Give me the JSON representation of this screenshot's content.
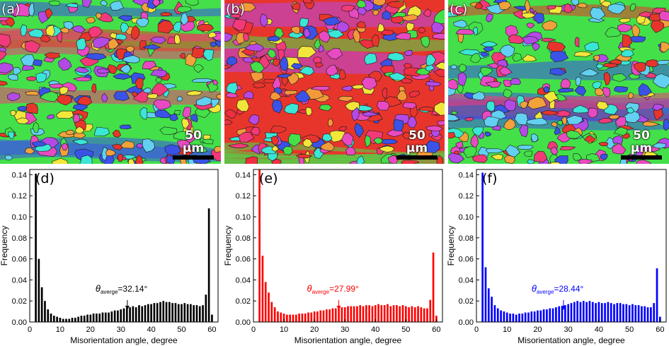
{
  "micrographs": [
    {
      "label": "(a)",
      "scale_text": "50 μm",
      "palette": [
        "#44e04a",
        "#e8352c",
        "#f23a7a",
        "#3a52e6",
        "#b44ae6",
        "#f2e63a",
        "#3ae6d6",
        "#f2a23a",
        "#e84ac2",
        "#62d0f0"
      ]
    },
    {
      "label": "(b)",
      "scale_text": "50 μm",
      "palette": [
        "#e8352c",
        "#44e04a",
        "#f23a7a",
        "#b44ae6",
        "#3a52e6",
        "#f2e63a",
        "#f29a3a",
        "#3ae6d6",
        "#e84ac2",
        "#ee3040"
      ]
    },
    {
      "label": "(c)",
      "scale_text": "50 μm",
      "palette": [
        "#44e04a",
        "#e8352c",
        "#f23a7a",
        "#3a52e6",
        "#b44ae6",
        "#e84ac2",
        "#f2e63a",
        "#3ae6d6",
        "#f2a23a",
        "#62d0f0"
      ]
    }
  ],
  "chart_data": [
    {
      "type": "bar",
      "label": "(d)",
      "color": "#000000",
      "xlabel": "Misorientation angle, degree",
      "ylabel": "Frequency",
      "xlim": [
        0,
        62
      ],
      "ylim": [
        0,
        0.145
      ],
      "xticks": [
        0,
        10,
        20,
        30,
        40,
        50,
        60
      ],
      "yticks": [
        0.0,
        0.02,
        0.04,
        0.06,
        0.08,
        0.1,
        0.12,
        0.14
      ],
      "x": [
        2,
        3,
        4,
        5,
        6,
        7,
        8,
        9,
        10,
        11,
        12,
        13,
        14,
        15,
        16,
        17,
        18,
        19,
        20,
        21,
        22,
        23,
        24,
        25,
        26,
        27,
        28,
        29,
        30,
        31,
        32,
        33,
        34,
        35,
        36,
        37,
        38,
        39,
        40,
        41,
        42,
        43,
        44,
        45,
        46,
        47,
        48,
        49,
        50,
        51,
        52,
        53,
        54,
        55,
        56,
        57,
        58,
        59,
        60,
        61
      ],
      "values": [
        0.141,
        0.06,
        0.033,
        0.02,
        0.012,
        0.008,
        0.006,
        0.005,
        0.004,
        0.003,
        0.003,
        0.003,
        0.004,
        0.004,
        0.005,
        0.006,
        0.006,
        0.007,
        0.007,
        0.008,
        0.008,
        0.008,
        0.009,
        0.009,
        0.009,
        0.01,
        0.011,
        0.011,
        0.012,
        0.013,
        0.013,
        0.014,
        0.015,
        0.014,
        0.016,
        0.015,
        0.016,
        0.017,
        0.017,
        0.018,
        0.018,
        0.019,
        0.02,
        0.019,
        0.019,
        0.018,
        0.018,
        0.017,
        0.017,
        0.018,
        0.017,
        0.017,
        0.016,
        0.016,
        0.015,
        0.016,
        0.026,
        0.108,
        0.007,
        0.0
      ],
      "annotation": {
        "symbol": "θ",
        "subscript": "averge",
        "value_text": "=32.14°",
        "x": 32.14
      }
    },
    {
      "type": "bar",
      "label": "(e)",
      "color": "#ff0000",
      "xlabel": "Misorientation angle, degree",
      "ylabel": "Frequency",
      "xlim": [
        0,
        62
      ],
      "ylim": [
        0,
        0.145
      ],
      "xticks": [
        0,
        10,
        20,
        30,
        40,
        50,
        60
      ],
      "yticks": [
        0.0,
        0.02,
        0.04,
        0.06,
        0.08,
        0.1,
        0.12,
        0.14
      ],
      "x": [
        2,
        3,
        4,
        5,
        6,
        7,
        8,
        9,
        10,
        11,
        12,
        13,
        14,
        15,
        16,
        17,
        18,
        19,
        20,
        21,
        22,
        23,
        24,
        25,
        26,
        27,
        28,
        29,
        30,
        31,
        32,
        33,
        34,
        35,
        36,
        37,
        38,
        39,
        40,
        41,
        42,
        43,
        44,
        45,
        46,
        47,
        48,
        49,
        50,
        51,
        52,
        53,
        54,
        55,
        56,
        57,
        58,
        59,
        60,
        61
      ],
      "values": [
        0.145,
        0.063,
        0.038,
        0.028,
        0.019,
        0.014,
        0.01,
        0.009,
        0.008,
        0.007,
        0.007,
        0.007,
        0.007,
        0.008,
        0.008,
        0.008,
        0.009,
        0.009,
        0.01,
        0.01,
        0.011,
        0.011,
        0.012,
        0.012,
        0.013,
        0.013,
        0.014,
        0.014,
        0.014,
        0.015,
        0.015,
        0.015,
        0.015,
        0.016,
        0.015,
        0.016,
        0.016,
        0.015,
        0.016,
        0.017,
        0.016,
        0.016,
        0.017,
        0.015,
        0.016,
        0.016,
        0.015,
        0.016,
        0.015,
        0.014,
        0.015,
        0.014,
        0.015,
        0.014,
        0.013,
        0.013,
        0.021,
        0.066,
        0.006,
        0.0
      ],
      "annotation": {
        "symbol": "θ",
        "subscript": "averge",
        "value_text": "=27.99°",
        "x": 27.99
      }
    },
    {
      "type": "bar",
      "label": "(f)",
      "color": "#0000ff",
      "xlabel": "Misorientation angle, degree",
      "ylabel": "Frequency",
      "xlim": [
        0,
        62
      ],
      "ylim": [
        0,
        0.145
      ],
      "xticks": [
        0,
        10,
        20,
        30,
        40,
        50,
        60
      ],
      "yticks": [
        0.0,
        0.02,
        0.04,
        0.06,
        0.08,
        0.1,
        0.12,
        0.14
      ],
      "x": [
        2,
        3,
        4,
        5,
        6,
        7,
        8,
        9,
        10,
        11,
        12,
        13,
        14,
        15,
        16,
        17,
        18,
        19,
        20,
        21,
        22,
        23,
        24,
        25,
        26,
        27,
        28,
        29,
        30,
        31,
        32,
        33,
        34,
        35,
        36,
        37,
        38,
        39,
        40,
        41,
        42,
        43,
        44,
        45,
        46,
        47,
        48,
        49,
        50,
        51,
        52,
        53,
        54,
        55,
        56,
        57,
        58,
        59,
        60,
        61
      ],
      "values": [
        0.142,
        0.052,
        0.032,
        0.024,
        0.016,
        0.013,
        0.011,
        0.01,
        0.009,
        0.008,
        0.008,
        0.007,
        0.008,
        0.008,
        0.009,
        0.009,
        0.01,
        0.01,
        0.011,
        0.011,
        0.012,
        0.012,
        0.013,
        0.013,
        0.014,
        0.015,
        0.015,
        0.016,
        0.017,
        0.018,
        0.019,
        0.02,
        0.019,
        0.02,
        0.019,
        0.02,
        0.019,
        0.018,
        0.019,
        0.018,
        0.018,
        0.019,
        0.018,
        0.017,
        0.018,
        0.018,
        0.017,
        0.017,
        0.016,
        0.017,
        0.016,
        0.016,
        0.015,
        0.015,
        0.014,
        0.014,
        0.018,
        0.051,
        0.005,
        0.0
      ],
      "annotation": {
        "symbol": "θ",
        "subscript": "averge",
        "value_text": "=28.44°",
        "x": 28.44
      }
    }
  ]
}
